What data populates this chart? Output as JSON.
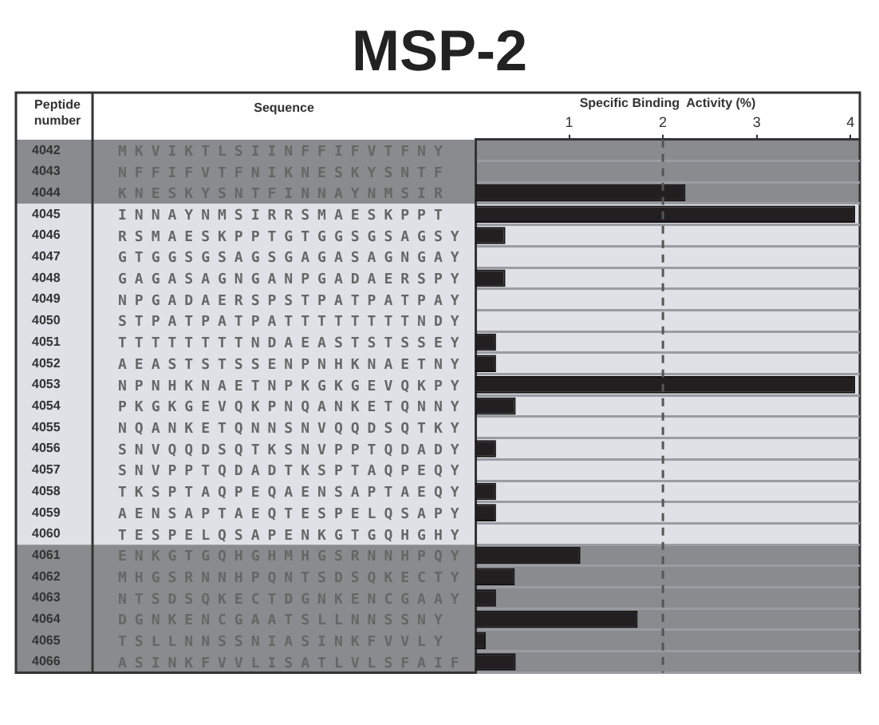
{
  "chart_data": {
    "type": "bar",
    "orientation": "horizontal",
    "title": "MSP-2",
    "x2label": "Specific Binding  Activity (%)",
    "ylabel": "Peptide number",
    "y2label": "Sequence",
    "categories": [
      "4042",
      "4043",
      "4044",
      "4045",
      "4046",
      "4047",
      "4048",
      "4049",
      "4050",
      "4051",
      "4052",
      "4053",
      "4054",
      "4055",
      "4056",
      "4057",
      "4058",
      "4059",
      "4060",
      "4061",
      "4062",
      "4063",
      "4064",
      "4065",
      "4066"
    ],
    "y2_categories": [
      "MKVIKTLSIINFFIFVTFNY",
      "NFFIFVTFNIKNESKYSNTF",
      "KNESKYSNTFINNAYNMSIR",
      "INNAYNMSIRRSMAESKPPT",
      "RSMAESKPPTGTGGSGSAGSY",
      "GTGGSGSAGSGAGASAGNGAY",
      "GAGASAGNGANPGADAERSPY",
      "NPGADAERSPSTPATPATPAY",
      "STPATPATPATTTTTTTTNDY",
      "TTTTTTTTNDAEASTSTSSEY",
      "AEASTSTSSENPNHKNAETNY",
      "NPNHKNAETNPKGKGEVQKPY",
      "PKGKGEVQKPNQANKETQNNY",
      "NQANKETQNNSNVQQDSQTKY",
      "SNVQQDSQTKSNVPPTQDADY",
      "SNVPPTQDADTKSPTAQPEQY",
      "TKSPTAQPEQAENSAPTAEQY",
      "AENSAPTAEQTESPELQSAPY",
      "TESPELQSAPENKGTGQHGHY",
      "ENKGTGQHGHMHGSRNNHPQY",
      "MHGSRNNHPQNTSDSQKECTY",
      "NTSDSQKECTDGNKENCGAAY",
      "DGNKENCGAATSLLNNSSNY",
      "TSLLNNSSNIASINKFVVLY",
      "ASINKFVVLISATLVLSFAIF"
    ],
    "series": [
      {
        "axis": "x2",
        "color": "#231f20",
        "values": [
          0,
          0,
          2.24,
          4.05,
          0.32,
          0,
          0.32,
          0,
          0,
          0.22,
          0.22,
          4.05,
          0.43,
          0,
          0.22,
          0,
          0.22,
          0.22,
          0,
          1.12,
          0.42,
          0.22,
          1.73,
          0.11,
          0.43
        ]
      }
    ],
    "x2lim": [
      0,
      4.1
    ],
    "x2ticks": [
      1,
      2,
      3,
      4
    ],
    "grid": "y",
    "ref_lines": [
      {
        "axis": "x2",
        "value": 2,
        "color": "#555555",
        "line_style": "dashed"
      }
    ],
    "bands": [
      {
        "axis": "y",
        "from": "4042",
        "to": "4044",
        "color": "#8a8b8e"
      },
      {
        "axis": "y",
        "from": "4061",
        "to": "4066",
        "color": "#8a8b8e"
      }
    ]
  }
}
